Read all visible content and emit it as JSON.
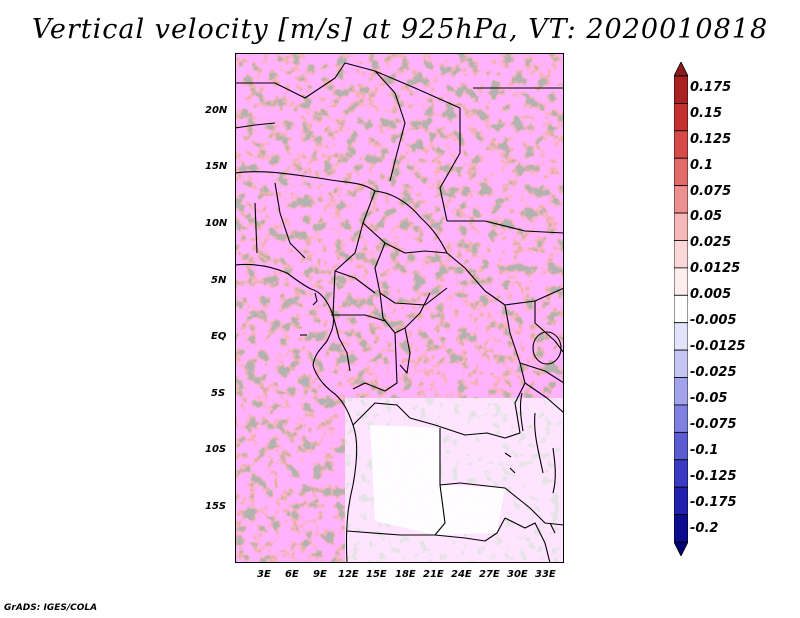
{
  "title": "Vertical velocity [m/s] at 925hPa, VT: 2020010818",
  "map": {
    "lat_labels": [
      "20N",
      "15N",
      "10N",
      "5N",
      "EQ",
      "5S",
      "10S",
      "15S"
    ],
    "lon_labels": [
      "3E",
      "6E",
      "9E",
      "12E",
      "15E",
      "18E",
      "21E",
      "24E",
      "27E",
      "30E",
      "33E"
    ]
  },
  "colorbar": {
    "labels": [
      "0.175",
      "0.15",
      "0.125",
      "0.1",
      "0.075",
      "0.05",
      "0.025",
      "0.0125",
      "0.005",
      "-0.005",
      "-0.0125",
      "-0.025",
      "-0.05",
      "-0.075",
      "-0.1",
      "-0.125",
      "-0.175",
      "-0.2"
    ],
    "colors": [
      "#8b1a1a",
      "#a82222",
      "#c43030",
      "#d64a4a",
      "#e36a6a",
      "#ee9090",
      "#f6b8b8",
      "#fbd8d8",
      "#fdeeee",
      "#ffffff",
      "#e3e3fb",
      "#c6c6f4",
      "#a3a3eb",
      "#8080e0",
      "#5c5cd2",
      "#3a3ac2",
      "#2121ad",
      "#0c0c8f",
      "#000070"
    ]
  },
  "footer": "GrADS: IGES/COLA"
}
